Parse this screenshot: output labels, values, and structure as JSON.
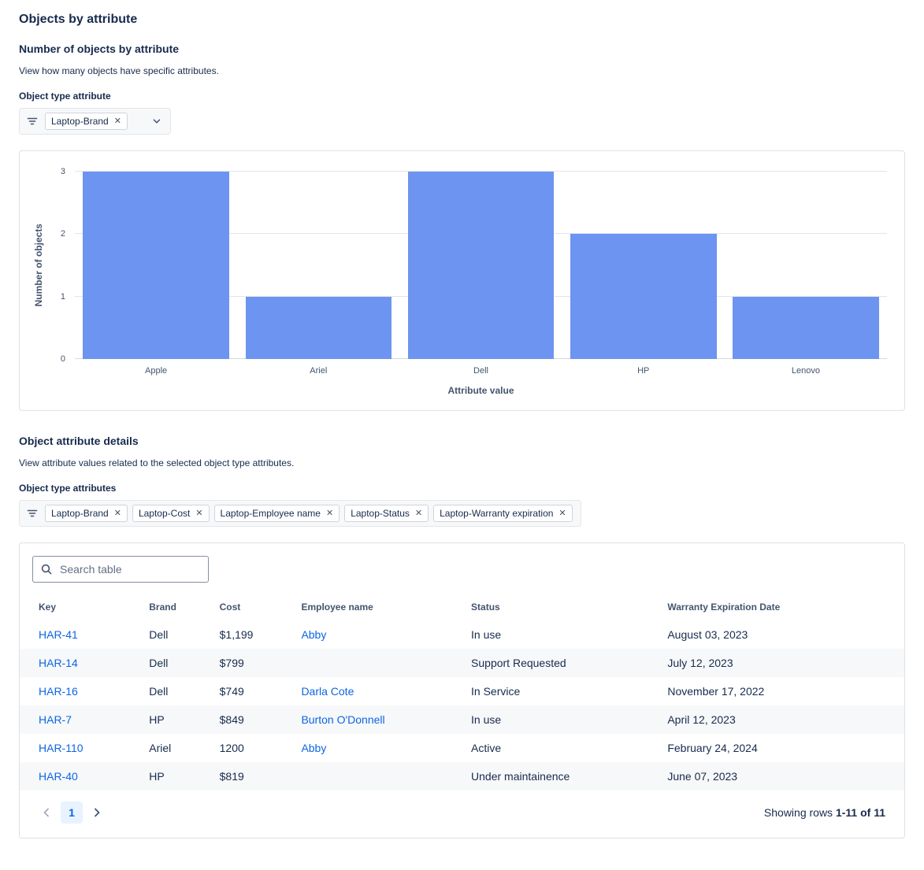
{
  "page": {
    "title": "Objects by attribute"
  },
  "icons": {
    "filter-icon": "funnel-lines",
    "chevron-down-icon": "v",
    "search-icon": "magnifier",
    "remove-icon": "✕",
    "chevron-left-icon": "‹",
    "chevron-right-icon": "›"
  },
  "chart_section": {
    "heading": "Number of objects by attribute",
    "description": "View how many objects have specific attributes.",
    "filter_label": "Object type attribute",
    "filter_tags": [
      {
        "label": "Laptop-Brand"
      }
    ]
  },
  "chart_data": {
    "type": "bar",
    "categories": [
      "Apple",
      "Ariel",
      "Dell",
      "HP",
      "Lenovo"
    ],
    "values": [
      3,
      1,
      3,
      2,
      1
    ],
    "title": "",
    "xlabel": "Attribute value",
    "ylabel": "Number of objects",
    "ylim": [
      0,
      3
    ],
    "yticks": [
      0,
      1,
      2,
      3
    ],
    "bar_color": "#6C94F0",
    "grid": true,
    "legend": false
  },
  "details_section": {
    "heading": "Object attribute details",
    "description": "View attribute values related to the selected object type attributes.",
    "filter_label": "Object type attributes",
    "filter_tags": [
      {
        "label": "Laptop-Brand"
      },
      {
        "label": "Laptop-Cost"
      },
      {
        "label": "Laptop-Employee name"
      },
      {
        "label": "Laptop-Status"
      },
      {
        "label": "Laptop-Warranty expiration"
      }
    ]
  },
  "table": {
    "search_placeholder": "Search table",
    "columns": [
      {
        "label": "Key",
        "field": "key",
        "link": true
      },
      {
        "label": "Brand",
        "field": "brand",
        "link": false
      },
      {
        "label": "Cost",
        "field": "cost",
        "link": false
      },
      {
        "label": "Employee name",
        "field": "employee",
        "link": true
      },
      {
        "label": "Status",
        "field": "status",
        "link": false
      },
      {
        "label": "Warranty Expiration Date",
        "field": "warranty",
        "link": false
      }
    ],
    "rows": [
      {
        "key": "HAR-41",
        "brand": "Dell",
        "cost": "$1,199",
        "employee": "Abby",
        "status": "In use",
        "warranty": "August 03, 2023"
      },
      {
        "key": "HAR-14",
        "brand": "Dell",
        "cost": "$799",
        "employee": "",
        "status": "Support Requested",
        "warranty": "July 12, 2023"
      },
      {
        "key": "HAR-16",
        "brand": "Dell",
        "cost": "$749",
        "employee": "Darla Cote",
        "status": "In Service",
        "warranty": "November 17, 2022"
      },
      {
        "key": "HAR-7",
        "brand": "HP",
        "cost": "$849",
        "employee": "Burton O'Donnell",
        "status": "In use",
        "warranty": "April 12, 2023"
      },
      {
        "key": "HAR-110",
        "brand": "Ariel",
        "cost": "1200",
        "employee": "Abby",
        "status": "Active",
        "warranty": "February 24, 2024"
      },
      {
        "key": "HAR-40",
        "brand": "HP",
        "cost": "$819",
        "employee": "",
        "status": "Under maintainence",
        "warranty": "June 07, 2023"
      }
    ],
    "pagination": {
      "current_page": "1",
      "summary_prefix": "Showing rows ",
      "summary_range": "1-11 of 11"
    }
  }
}
